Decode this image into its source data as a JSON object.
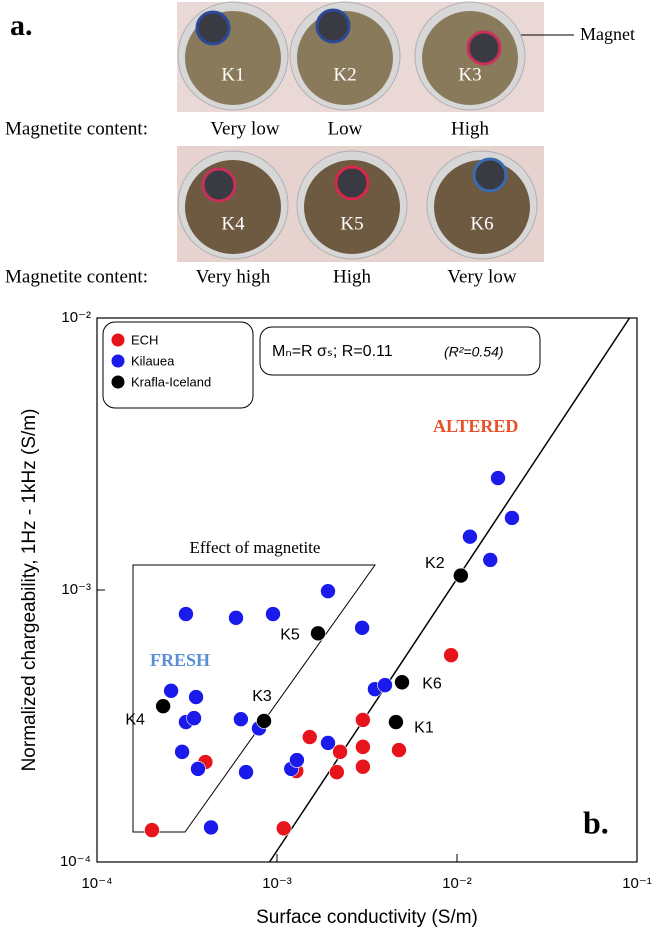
{
  "photos": {
    "label": "a.",
    "magnet_label": "Magnet",
    "rows": [
      {
        "caption": "Magnetite content:",
        "samples": [
          {
            "id": "K1",
            "content": "Very low"
          },
          {
            "id": "K2",
            "content": "Low"
          },
          {
            "id": "K3",
            "content": "High"
          }
        ]
      },
      {
        "caption": "Magnetite content:",
        "samples": [
          {
            "id": "K4",
            "content": "Very high"
          },
          {
            "id": "K5",
            "content": "High"
          },
          {
            "id": "K6",
            "content": "Very low"
          }
        ]
      }
    ]
  },
  "chart_data": {
    "type": "scatter",
    "panel_label": "b.",
    "x_label": "Surface conductivity   (S/m)",
    "y_label": "Normalized chargeability, 1Hz - 1kHz (S/m)",
    "log_x": true,
    "log_y": true,
    "xlim": [
      0.0001,
      0.1
    ],
    "ylim": [
      0.0001,
      0.01
    ],
    "xticks": [
      {
        "value": 0.0001,
        "label": "10⁻⁴"
      },
      {
        "value": 0.001,
        "label": "10⁻³"
      },
      {
        "value": 0.01,
        "label": "10⁻²"
      },
      {
        "value": 0.1,
        "label": "10⁻¹"
      }
    ],
    "yticks": [
      {
        "value": 0.0001,
        "label": "10⁻⁴"
      },
      {
        "value": 0.001,
        "label": "10⁻³"
      },
      {
        "value": 0.01,
        "label": "10⁻²"
      }
    ],
    "legend": "top-left",
    "fit": {
      "R": 0.11,
      "equation": "Mₙ=R  σₛ; R=0.11",
      "r2": "(R²=0.54)"
    },
    "annotations": {
      "magnetite": "Effect of magnetite",
      "fresh": "FRESH",
      "altered": "ALTERED"
    },
    "series": [
      {
        "name": "ECH",
        "color": "#e8141b",
        "x": [
          0.000202,
          0.0004,
          0.00109,
          0.00152,
          0.00224,
          0.00215,
          0.00128,
          0.003,
          0.003,
          0.003,
          0.00476,
          0.00927
        ],
        "values": [
          0.000131,
          0.000233,
          0.000133,
          0.000288,
          0.000254,
          0.000214,
          0.000216,
          0.000265,
          0.000333,
          0.000224,
          0.000258,
          0.000576
        ]
      },
      {
        "name": "Kilauea",
        "color": "#1a1aeb",
        "x": [
          0.000312,
          0.000592,
          0.00095,
          0.00192,
          0.00297,
          0.000258,
          0.000355,
          0.000312,
          0.000346,
          0.000297,
          0.000364,
          0.00043,
          0.00063,
          0.000673,
          0.000794,
          0.0012,
          0.00129,
          0.00192,
          0.0035,
          0.00398,
          0.0118,
          0.0153,
          0.0169,
          0.0202
        ],
        "values": [
          0.000816,
          0.00079,
          0.000816,
          0.00099,
          0.000726,
          0.000426,
          0.000404,
          0.000327,
          0.000338,
          0.000254,
          0.00022,
          0.000134,
          0.000335,
          0.000214,
          0.00031,
          0.00022,
          0.000237,
          0.000274,
          0.000432,
          0.000447,
          0.00157,
          0.00129,
          0.00258,
          0.00184
        ]
      },
      {
        "name": "Krafla-Iceland",
        "color": "#000000",
        "x": [
          0.000233,
          0.000847,
          0.00169,
          0.00458,
          0.00495,
          0.0105
        ],
        "values": [
          0.000374,
          0.00033,
          0.000693,
          0.000327,
          0.000458,
          0.00113
        ],
        "labels": [
          "K4",
          "K3",
          "K5",
          "K1",
          "K6",
          "K2"
        ]
      }
    ]
  }
}
